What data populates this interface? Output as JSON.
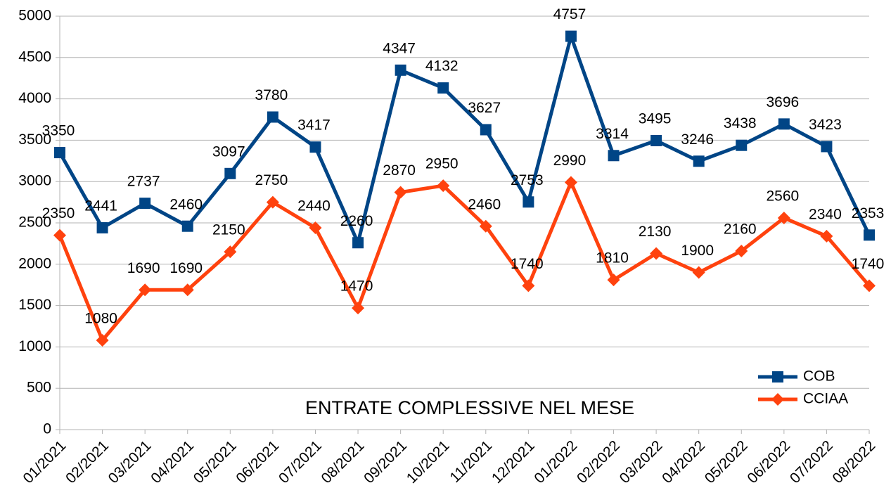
{
  "chart_data": {
    "type": "line",
    "title": "ENTRATE COMPLESSIVE NEL MESE",
    "categories": [
      "01/2021",
      "02/2021",
      "03/2021",
      "04/2021",
      "05/2021",
      "06/2021",
      "07/2021",
      "08/2021",
      "09/2021",
      "10/2021",
      "11/2021",
      "12/2021",
      "01/2022",
      "02/2022",
      "03/2022",
      "04/2022",
      "05/2022",
      "06/2022",
      "07/2022",
      "08/2022"
    ],
    "series": [
      {
        "name": "COB",
        "color": "#004586",
        "marker": "square",
        "values": [
          3350,
          2441,
          2737,
          2460,
          3097,
          3780,
          3417,
          2260,
          4347,
          4132,
          3627,
          2753,
          4757,
          3314,
          3495,
          3246,
          3438,
          3696,
          3423,
          2353
        ]
      },
      {
        "name": "CCIAA",
        "color": "#ff420e",
        "marker": "diamond",
        "values": [
          2350,
          1080,
          1690,
          1690,
          2150,
          2750,
          2440,
          1470,
          2870,
          2950,
          2460,
          1740,
          2990,
          1810,
          2130,
          1900,
          2160,
          2560,
          2340,
          1740
        ]
      }
    ],
    "ylim": [
      0,
      5000
    ],
    "yticks": [
      0,
      500,
      1000,
      1500,
      2000,
      2500,
      3000,
      3500,
      4000,
      4500,
      5000
    ],
    "grid": true,
    "legend": "lower right"
  }
}
